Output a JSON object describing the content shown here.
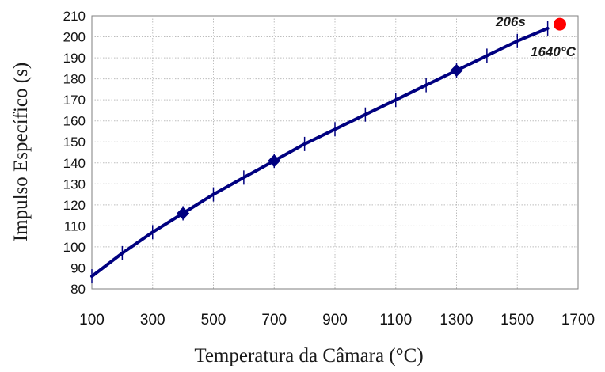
{
  "chart_data": {
    "type": "line",
    "title": "",
    "xlabel": "Temperatura da Câmara (°C)",
    "ylabel": "Impulso Específico (s)",
    "xlim": [
      100,
      1700
    ],
    "ylim": [
      80,
      210
    ],
    "x_ticks": [
      "100",
      "300",
      "500",
      "700",
      "900",
      "1100",
      "1300",
      "1500",
      "1700"
    ],
    "y_ticks": [
      "80",
      "90",
      "100",
      "110",
      "120",
      "130",
      "140",
      "150",
      "160",
      "170",
      "180",
      "190",
      "200",
      "210"
    ],
    "grid": true,
    "series": [
      {
        "color": "#000080",
        "x": [
          100,
          200,
          300,
          400,
          500,
          600,
          700,
          800,
          900,
          1000,
          1100,
          1200,
          1300,
          1400,
          1500,
          1600
        ],
        "y": [
          86,
          97,
          107,
          116,
          125,
          133,
          141,
          149,
          156,
          163,
          170,
          177,
          184,
          191,
          198,
          204
        ]
      }
    ],
    "highlight_point": {
      "x": 1640,
      "y": 206,
      "color": "#ff0000"
    },
    "annotations": {
      "value_label": "206s",
      "temp_label": "1640°C"
    }
  }
}
